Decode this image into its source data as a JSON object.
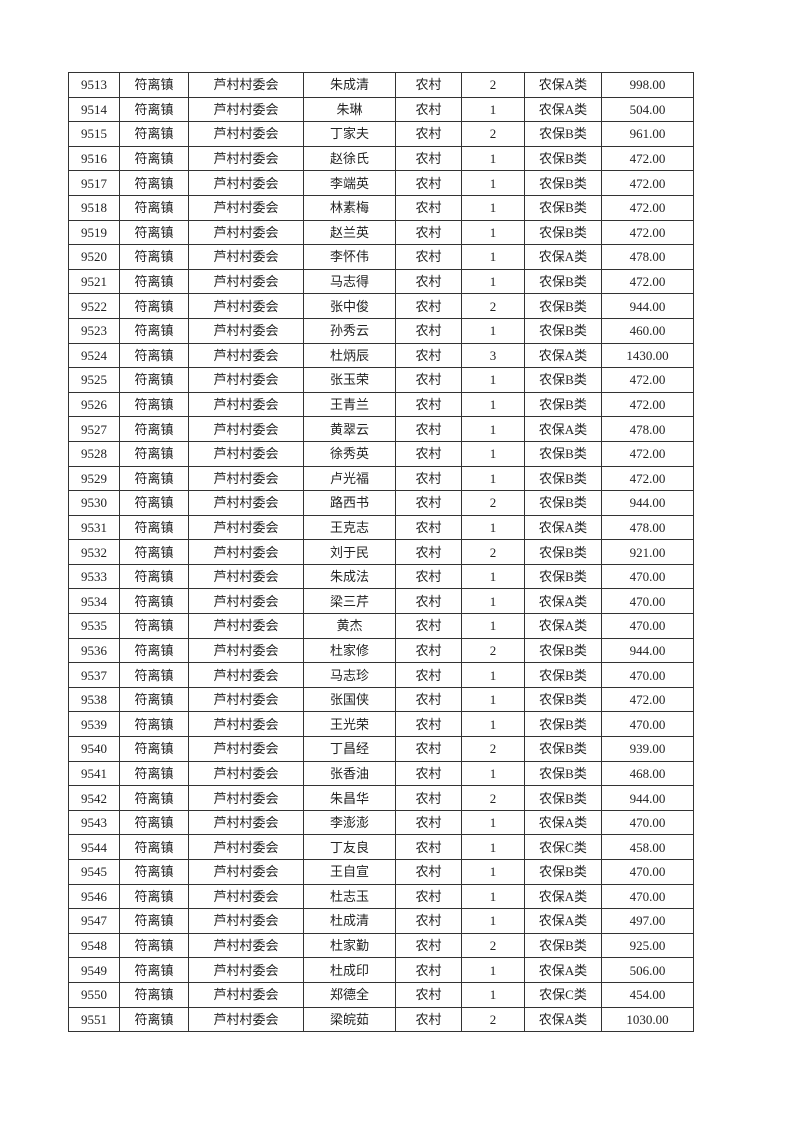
{
  "table": {
    "rows": [
      [
        "9513",
        "符离镇",
        "芦村村委会",
        "朱成清",
        "农村",
        "2",
        "农保A类",
        "998.00"
      ],
      [
        "9514",
        "符离镇",
        "芦村村委会",
        "朱琳",
        "农村",
        "1",
        "农保A类",
        "504.00"
      ],
      [
        "9515",
        "符离镇",
        "芦村村委会",
        "丁家夫",
        "农村",
        "2",
        "农保B类",
        "961.00"
      ],
      [
        "9516",
        "符离镇",
        "芦村村委会",
        "赵徐氏",
        "农村",
        "1",
        "农保B类",
        "472.00"
      ],
      [
        "9517",
        "符离镇",
        "芦村村委会",
        "李端英",
        "农村",
        "1",
        "农保B类",
        "472.00"
      ],
      [
        "9518",
        "符离镇",
        "芦村村委会",
        "林素梅",
        "农村",
        "1",
        "农保B类",
        "472.00"
      ],
      [
        "9519",
        "符离镇",
        "芦村村委会",
        "赵兰英",
        "农村",
        "1",
        "农保B类",
        "472.00"
      ],
      [
        "9520",
        "符离镇",
        "芦村村委会",
        "李怀伟",
        "农村",
        "1",
        "农保A类",
        "478.00"
      ],
      [
        "9521",
        "符离镇",
        "芦村村委会",
        "马志得",
        "农村",
        "1",
        "农保B类",
        "472.00"
      ],
      [
        "9522",
        "符离镇",
        "芦村村委会",
        "张中俊",
        "农村",
        "2",
        "农保B类",
        "944.00"
      ],
      [
        "9523",
        "符离镇",
        "芦村村委会",
        "孙秀云",
        "农村",
        "1",
        "农保B类",
        "460.00"
      ],
      [
        "9524",
        "符离镇",
        "芦村村委会",
        "杜炳辰",
        "农村",
        "3",
        "农保A类",
        "1430.00"
      ],
      [
        "9525",
        "符离镇",
        "芦村村委会",
        "张玉荣",
        "农村",
        "1",
        "农保B类",
        "472.00"
      ],
      [
        "9526",
        "符离镇",
        "芦村村委会",
        "王青兰",
        "农村",
        "1",
        "农保B类",
        "472.00"
      ],
      [
        "9527",
        "符离镇",
        "芦村村委会",
        "黄翠云",
        "农村",
        "1",
        "农保A类",
        "478.00"
      ],
      [
        "9528",
        "符离镇",
        "芦村村委会",
        "徐秀英",
        "农村",
        "1",
        "农保B类",
        "472.00"
      ],
      [
        "9529",
        "符离镇",
        "芦村村委会",
        "卢光福",
        "农村",
        "1",
        "农保B类",
        "472.00"
      ],
      [
        "9530",
        "符离镇",
        "芦村村委会",
        "路西书",
        "农村",
        "2",
        "农保B类",
        "944.00"
      ],
      [
        "9531",
        "符离镇",
        "芦村村委会",
        "王克志",
        "农村",
        "1",
        "农保A类",
        "478.00"
      ],
      [
        "9532",
        "符离镇",
        "芦村村委会",
        "刘于民",
        "农村",
        "2",
        "农保B类",
        "921.00"
      ],
      [
        "9533",
        "符离镇",
        "芦村村委会",
        "朱成法",
        "农村",
        "1",
        "农保B类",
        "470.00"
      ],
      [
        "9534",
        "符离镇",
        "芦村村委会",
        "梁三芹",
        "农村",
        "1",
        "农保A类",
        "470.00"
      ],
      [
        "9535",
        "符离镇",
        "芦村村委会",
        "黄杰",
        "农村",
        "1",
        "农保A类",
        "470.00"
      ],
      [
        "9536",
        "符离镇",
        "芦村村委会",
        "杜家修",
        "农村",
        "2",
        "农保B类",
        "944.00"
      ],
      [
        "9537",
        "符离镇",
        "芦村村委会",
        "马志珍",
        "农村",
        "1",
        "农保B类",
        "470.00"
      ],
      [
        "9538",
        "符离镇",
        "芦村村委会",
        "张国侠",
        "农村",
        "1",
        "农保B类",
        "472.00"
      ],
      [
        "9539",
        "符离镇",
        "芦村村委会",
        "王光荣",
        "农村",
        "1",
        "农保B类",
        "470.00"
      ],
      [
        "9540",
        "符离镇",
        "芦村村委会",
        "丁昌经",
        "农村",
        "2",
        "农保B类",
        "939.00"
      ],
      [
        "9541",
        "符离镇",
        "芦村村委会",
        "张香油",
        "农村",
        "1",
        "农保B类",
        "468.00"
      ],
      [
        "9542",
        "符离镇",
        "芦村村委会",
        "朱昌华",
        "农村",
        "2",
        "农保B类",
        "944.00"
      ],
      [
        "9543",
        "符离镇",
        "芦村村委会",
        "李澎澎",
        "农村",
        "1",
        "农保A类",
        "470.00"
      ],
      [
        "9544",
        "符离镇",
        "芦村村委会",
        "丁友良",
        "农村",
        "1",
        "农保C类",
        "458.00"
      ],
      [
        "9545",
        "符离镇",
        "芦村村委会",
        "王自宣",
        "农村",
        "1",
        "农保B类",
        "470.00"
      ],
      [
        "9546",
        "符离镇",
        "芦村村委会",
        "杜志玉",
        "农村",
        "1",
        "农保A类",
        "470.00"
      ],
      [
        "9547",
        "符离镇",
        "芦村村委会",
        "杜成清",
        "农村",
        "1",
        "农保A类",
        "497.00"
      ],
      [
        "9548",
        "符离镇",
        "芦村村委会",
        "杜家勤",
        "农村",
        "2",
        "农保B类",
        "925.00"
      ],
      [
        "9549",
        "符离镇",
        "芦村村委会",
        "杜成印",
        "农村",
        "1",
        "农保A类",
        "506.00"
      ],
      [
        "9550",
        "符离镇",
        "芦村村委会",
        "郑德全",
        "农村",
        "1",
        "农保C类",
        "454.00"
      ],
      [
        "9551",
        "符离镇",
        "芦村村委会",
        "梁皖茹",
        "农村",
        "2",
        "农保A类",
        "1030.00"
      ]
    ]
  }
}
